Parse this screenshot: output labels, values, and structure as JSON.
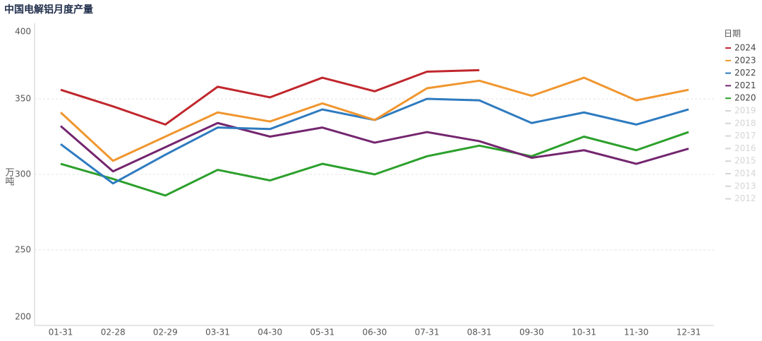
{
  "chart_data": {
    "type": "line",
    "title": "中国电解铝月度产量",
    "y_label": "万吨",
    "legend_title": "日期",
    "categories": [
      "01-31",
      "02-28",
      "02-29",
      "03-31",
      "04-30",
      "05-31",
      "06-30",
      "07-31",
      "08-31",
      "09-30",
      "10-31",
      "11-30",
      "12-31"
    ],
    "series": [
      {
        "name": "2024",
        "color": "#c0272d",
        "values": [
          356,
          345,
          333,
          358,
          351,
          364,
          355,
          368,
          369,
          null,
          null,
          null,
          null
        ]
      },
      {
        "name": "2023",
        "color": "#f0962f",
        "values": [
          341,
          309,
          325,
          341,
          335,
          347,
          336,
          357,
          362,
          352,
          364,
          349,
          356
        ]
      },
      {
        "name": "2022",
        "color": "#2e7bbf",
        "values": [
          320,
          294,
          313,
          331,
          330,
          343,
          336,
          350,
          349,
          334,
          341,
          333,
          343
        ]
      },
      {
        "name": "2021",
        "color": "#74266f",
        "values": [
          332,
          302,
          318,
          334,
          325,
          331,
          321,
          328,
          322,
          311,
          316,
          307,
          317
        ]
      },
      {
        "name": "2020",
        "color": "#2ca02c",
        "values": [
          307,
          297,
          286,
          303,
          296,
          307,
          300,
          312,
          319,
          312,
          325,
          316,
          328
        ]
      }
    ],
    "legend_hidden": [
      "2019",
      "2018",
      "2017",
      "2016",
      "2015",
      "2014",
      "2013",
      "2012"
    ],
    "hidden_color": "#d5d5d5",
    "ylim": [
      200,
      400
    ],
    "yticks": [
      200,
      250,
      300,
      350,
      400
    ],
    "grid": true,
    "legend": "right"
  }
}
